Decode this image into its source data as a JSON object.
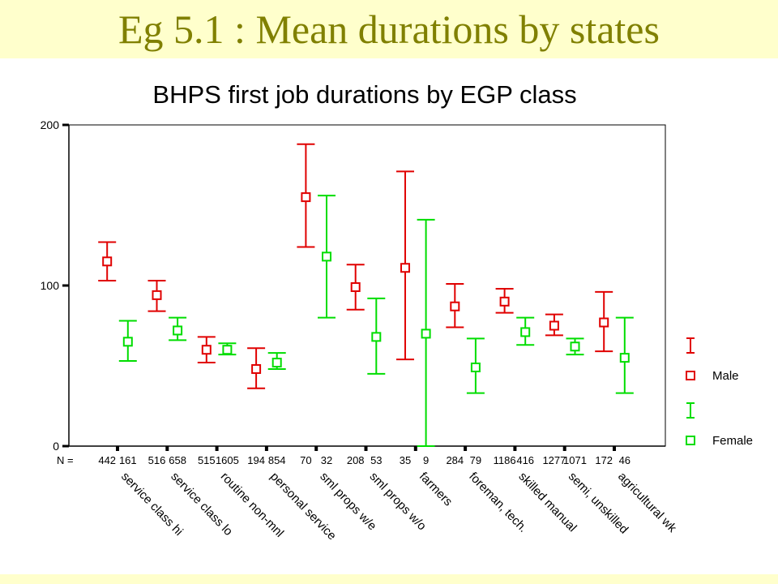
{
  "slide": {
    "title": "Eg 5.1 : Mean durations by states"
  },
  "chart_data": {
    "type": "error-bar",
    "title": "BHPS first job durations by EGP class",
    "n_label": "N =",
    "ylim": [
      0,
      200
    ],
    "yticks": [
      0,
      100,
      200
    ],
    "categories": [
      "service class hi",
      "service class lo",
      "routine non-mnl",
      "personal service",
      "sml props w/e",
      "sml props w/o",
      "farmers",
      "foreman, tech.",
      "skilled manual",
      "semi, unskilled",
      "agricultural wk"
    ],
    "legend_position": "right",
    "series": [
      {
        "name": "Male",
        "color": "#e00000",
        "n": [
          "442",
          "516",
          "515",
          "194",
          "70",
          "208",
          "35",
          "284",
          "1186",
          "1277",
          "172"
        ],
        "mean": [
          115,
          94,
          60,
          48,
          155,
          99,
          111,
          87,
          90,
          75,
          77
        ],
        "lower": [
          103,
          84,
          52,
          36,
          124,
          85,
          54,
          74,
          83,
          69,
          59
        ],
        "upper": [
          127,
          103,
          68,
          61,
          188,
          113,
          171,
          101,
          98,
          82,
          96
        ]
      },
      {
        "name": "Female",
        "color": "#00dd00",
        "n": [
          "161",
          "658",
          "1605",
          "854",
          "32",
          "53",
          "9",
          "79",
          "416",
          "1071",
          "46"
        ],
        "mean": [
          65,
          72,
          60,
          52,
          118,
          68,
          70,
          49,
          71,
          62,
          55
        ],
        "lower": [
          53,
          66,
          57,
          48,
          80,
          45,
          0,
          33,
          63,
          57,
          33
        ],
        "upper": [
          78,
          80,
          64,
          58,
          156,
          92,
          141,
          67,
          80,
          67,
          80
        ]
      }
    ]
  }
}
